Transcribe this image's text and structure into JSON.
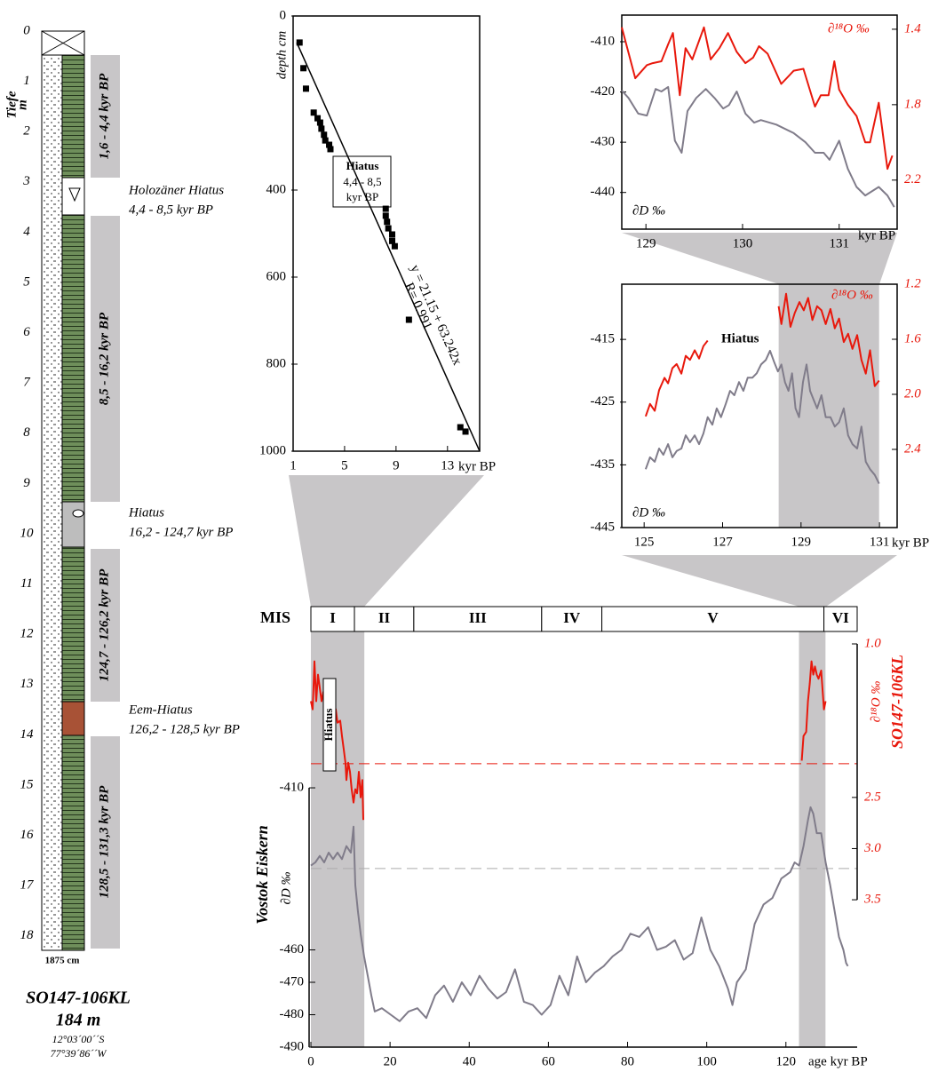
{
  "core_log": {
    "depth_title": "Tiefe",
    "depth_unit": "m",
    "depth_labels": [
      0,
      1,
      2,
      3,
      4,
      5,
      6,
      7,
      8,
      9,
      10,
      11,
      12,
      13,
      14,
      15,
      16,
      17,
      18
    ],
    "age_bars": [
      "1,6 - 4,4 kyr BP",
      "8,5 - 16,2 kyr BP",
      "124,7 - 126,2 kyr BP",
      "128,5 - 131,3 kyr BP"
    ],
    "hiatuses": [
      [
        "Holozäner Hiatus",
        "4,4 - 8,5 kyr BP"
      ],
      [
        "Hiatus",
        "16,2 - 124,7 kyr BP"
      ],
      [
        "Eem-Hiatus",
        "126,2 - 128,5 kyr BP"
      ]
    ],
    "bottom_label": "1875 cm",
    "core_name": "SO147-106KL",
    "water_depth": "184 m",
    "lat": "12°03´00´´S",
    "lon": "77°39´86´´W"
  },
  "chart_data": [
    {
      "type": "scatter",
      "ylabel": "depth cm",
      "xlabel": "kyr BP",
      "xlim": [
        1,
        15.5
      ],
      "ylim": [
        1000,
        0
      ],
      "xticks": [
        1,
        5,
        9,
        13
      ],
      "yticks": [
        0,
        400,
        600,
        800,
        1000
      ],
      "series": [
        {
          "color": "#000000",
          "x": [
            1.5,
            1.8,
            2.0,
            2.6,
            2.9,
            3.1,
            3.2,
            3.4,
            3.5,
            3.8,
            3.9,
            8.2,
            8.2,
            8.3,
            8.4,
            8.7,
            8.7,
            8.9,
            10.0,
            14.0,
            14.4
          ],
          "values": [
            61,
            120,
            167,
            222,
            235,
            245,
            259,
            273,
            286,
            296,
            306,
            443,
            459,
            473,
            488,
            502,
            517,
            529,
            698,
            945,
            955
          ]
        }
      ],
      "fit": {
        "color": "#000000",
        "x": [
          1.28,
          15.5
        ],
        "values": [
          61,
          1000
        ]
      },
      "annotations": {
        "equation": "y = 21.15 + 63.242x",
        "r": "R= 0.991",
        "hiatus_box": [
          "Hiatus",
          "4,4 - 8,5",
          "kyr BP"
        ]
      }
    },
    {
      "type": "line",
      "ylabel": "∂D ‰",
      "y2label": "∂¹⁸O ‰",
      "xlabel": "kyr BP",
      "xlim": [
        128.75,
        131.6
      ],
      "ylim": [
        -447.3,
        -404.7
      ],
      "y2lim": [
        2.46,
        1.325
      ],
      "xticks": [
        129,
        130,
        131
      ],
      "yticks": [
        -410,
        -420,
        -430,
        -440
      ],
      "y2ticks": [
        1.4,
        1.8,
        2.2
      ],
      "series": [
        {
          "color": "#807c8a",
          "x": [
            128.75,
            128.82,
            128.92,
            129.01,
            129.1,
            129.16,
            129.23,
            129.3,
            129.37,
            129.43,
            129.52,
            129.62,
            129.71,
            129.8,
            129.86,
            129.94,
            130.03,
            130.12,
            130.19,
            130.35,
            130.53,
            130.65,
            130.75,
            130.84,
            130.9,
            131.0,
            131.09,
            131.18,
            131.27,
            131.41,
            131.5,
            131.57
          ],
          "values": [
            -419.7,
            -421.2,
            -424.3,
            -424.7,
            -419.4,
            -419.9,
            -419.0,
            -429.7,
            -432.1,
            -423.8,
            -421.2,
            -419.4,
            -421.2,
            -423.3,
            -422.6,
            -419.9,
            -424.3,
            -426.1,
            -425.6,
            -426.5,
            -428.2,
            -430.0,
            -432.1,
            -432.1,
            -433.5,
            -429.7,
            -435.3,
            -438.9,
            -440.6,
            -438.9,
            -440.6,
            -442.9
          ]
        },
        {
          "color": "#e8180c",
          "axis": "y2",
          "x": [
            128.75,
            128.89,
            129.01,
            129.07,
            129.16,
            129.23,
            129.28,
            129.35,
            129.41,
            129.48,
            129.6,
            129.67,
            129.76,
            129.85,
            129.94,
            130.03,
            130.11,
            130.17,
            130.26,
            130.4,
            130.53,
            130.63,
            130.75,
            130.81,
            130.89,
            130.95,
            131.0,
            131.09,
            131.18,
            131.27,
            131.32,
            131.41,
            131.5,
            131.55
          ],
          "values": [
            1.39,
            1.66,
            1.59,
            1.58,
            1.57,
            1.48,
            1.42,
            1.75,
            1.5,
            1.56,
            1.39,
            1.56,
            1.5,
            1.42,
            1.52,
            1.58,
            1.55,
            1.49,
            1.53,
            1.69,
            1.62,
            1.61,
            1.81,
            1.75,
            1.75,
            1.57,
            1.72,
            1.8,
            1.86,
            2.0,
            2.0,
            1.79,
            2.14,
            2.07
          ]
        }
      ]
    },
    {
      "type": "line",
      "ylabel": "∂D ‰",
      "y2label": "∂¹⁸O ‰",
      "xlabel": "kyr BP",
      "annotation": "Hiatus",
      "xlim": [
        124.43,
        131.45
      ],
      "ylim": [
        -445,
        -406.2
      ],
      "y2lim": [
        2.968,
        1.2
      ],
      "xticks": [
        125,
        127,
        129,
        131
      ],
      "yticks": [
        -415,
        -425,
        -435,
        -445
      ],
      "y2ticks": [
        1.2,
        1.6,
        {
          "value": 2,
          "label": "2.0"
        },
        2.4
      ],
      "shaded": [
        [
          128.43,
          130.99
        ]
      ],
      "series": [
        {
          "color": "#807c8a",
          "x": [
            125.04,
            125.15,
            125.27,
            125.38,
            125.49,
            125.61,
            125.72,
            125.83,
            125.95,
            126.06,
            126.17,
            126.29,
            126.4,
            126.51,
            126.62,
            126.74,
            126.85,
            126.96,
            127.08,
            127.19,
            127.3,
            127.42,
            127.53,
            127.64,
            127.76,
            127.87,
            127.98,
            128.1,
            128.21,
            128.32,
            128.41,
            128.5,
            128.59,
            128.68,
            128.77,
            128.86,
            128.95,
            129.05,
            129.14,
            129.23,
            129.32,
            129.41,
            129.52,
            129.63,
            129.75,
            129.86,
            129.97,
            130.09,
            130.2,
            130.31,
            130.43,
            130.54,
            130.65,
            130.76,
            130.88,
            130.99
          ],
          "values": [
            -435.7,
            -433.8,
            -434.5,
            -432.4,
            -433.4,
            -431.7,
            -433.8,
            -432.8,
            -432.4,
            -430.3,
            -431.4,
            -430.3,
            -431.7,
            -430.0,
            -427.4,
            -428.6,
            -426.0,
            -427.4,
            -425.3,
            -423.2,
            -423.9,
            -421.8,
            -423.2,
            -421.1,
            -421.1,
            -420.4,
            -419.0,
            -418.3,
            -416.8,
            -418.7,
            -420.1,
            -419.0,
            -421.8,
            -423.2,
            -420.4,
            -426.0,
            -427.4,
            -421.8,
            -419.0,
            -423.2,
            -424.6,
            -426.0,
            -423.9,
            -427.4,
            -427.4,
            -428.9,
            -428.2,
            -426.0,
            -430.3,
            -431.7,
            -432.4,
            -428.9,
            -434.5,
            -435.7,
            -436.6,
            -438.0
          ]
        },
        {
          "color": "#e8180c",
          "axis": "y2",
          "x": [
            125.04,
            125.15,
            125.27,
            125.38,
            125.52,
            125.61,
            125.72,
            125.83,
            125.95,
            126.06,
            126.17,
            126.29,
            126.4,
            126.51,
            126.62,
            127.5,
            128.43,
            128.5,
            128.62,
            128.73,
            128.84,
            128.96,
            129.07,
            129.18,
            129.29,
            129.41,
            129.52,
            129.63,
            129.75,
            129.86,
            129.97,
            130.09,
            130.2,
            130.31,
            130.43,
            130.54,
            130.65,
            130.76,
            130.88,
            130.99
          ],
          "values": [
            2.16,
            2.07,
            2.12,
            1.97,
            1.88,
            1.92,
            1.81,
            1.78,
            1.85,
            1.72,
            1.75,
            1.68,
            1.74,
            1.65,
            1.61,
            null,
            1.36,
            1.49,
            1.27,
            1.51,
            1.41,
            1.33,
            1.39,
            1.3,
            1.46,
            1.36,
            1.39,
            1.49,
            1.38,
            1.52,
            1.45,
            1.62,
            1.56,
            1.67,
            1.57,
            1.75,
            1.85,
            1.68,
            1.94,
            1.9
          ]
        }
      ]
    },
    {
      "type": "line",
      "ylabel": "∂D ‰",
      "ylabel2": "Vostok Eiskern",
      "y2label": "∂¹⁸O ‰",
      "y2label2": "SO147-106KL",
      "xlabel": "age kyr BP",
      "annotation": "Hiatus",
      "xlim": [
        0,
        138
      ],
      "ylim": [
        -490,
        -365.6
      ],
      "y2lim": [
        4.94,
        1.0
      ],
      "xticks": [
        0,
        20,
        40,
        60,
        80,
        100,
        120
      ],
      "yticks": [
        -410,
        -460,
        -470,
        -480,
        -490
      ],
      "y2ticks": [
        {
          "value": 1,
          "label": "1.0"
        },
        2.5,
        {
          "value": 3,
          "label": "3.0"
        },
        3.5
      ],
      "shaded": [
        [
          0,
          13.5
        ],
        [
          123.3,
          130.0
        ]
      ],
      "reference_lines": [
        {
          "axis": "y2",
          "value": 2.17,
          "color": "#e8180c"
        },
        {
          "axis": "y",
          "value": -434.9,
          "color": "#aaaaaa"
        }
      ],
      "mis": {
        "label": "MIS",
        "stages": [
          {
            "name": "I",
            "start": 0,
            "end": 11
          },
          {
            "name": "II",
            "start": 11,
            "end": 26
          },
          {
            "name": "III",
            "start": 26,
            "end": 58.3
          },
          {
            "name": "IV",
            "start": 58.3,
            "end": 73.5
          },
          {
            "name": "V",
            "start": 73.5,
            "end": 129.6
          },
          {
            "name": "VI",
            "start": 129.6,
            "end": 138
          }
        ]
      },
      "series": [
        {
          "color": "#807c8a",
          "x": [
            0,
            1.12,
            2.24,
            3.36,
            4.48,
            5.61,
            6.73,
            7.85,
            8.97,
            10.09,
            10.76,
            11.21,
            11.88,
            12.56,
            13.45,
            14.35,
            15.25,
            16.14,
            17.94,
            20.18,
            22.42,
            24.66,
            26.91,
            29.15,
            31.39,
            33.63,
            35.87,
            38.12,
            40.36,
            42.6,
            44.84,
            47.09,
            49.33,
            51.57,
            53.81,
            56.05,
            58.3,
            60.54,
            62.78,
            65.02,
            67.26,
            69.51,
            71.75,
            73.99,
            76.23,
            78.48,
            80.72,
            82.96,
            85.2,
            87.44,
            89.69,
            91.93,
            94.17,
            96.41,
            98.65,
            100.9,
            103.14,
            105.38,
            106.5,
            107.62,
            109.87,
            112.11,
            114.35,
            116.59,
            118.83,
            121.08,
            122.2,
            123.32,
            124.44,
            125.56,
            126.23,
            126.91,
            127.8,
            128.92,
            130.04,
            131.17,
            132.29,
            133.41,
            134.53,
            135.2,
            135.65
          ],
          "values": [
            -434,
            -433,
            -431,
            -433,
            -430,
            -432,
            -430,
            -432,
            -428,
            -430,
            -422,
            -440,
            -448,
            -455,
            -462,
            -468,
            -474,
            -479,
            -478,
            -480,
            -482,
            -479,
            -478,
            -481,
            -474,
            -471,
            -476,
            -470,
            -474,
            -468,
            -472,
            -475,
            -473,
            -466,
            -476,
            -477,
            -480,
            -477,
            -468,
            -474,
            -462,
            -470,
            -467,
            -465,
            -462,
            -460,
            -455,
            -456,
            -453,
            -460,
            -459,
            -457,
            -463,
            -461,
            -450,
            -460,
            -465,
            -472,
            -477,
            -470,
            -466,
            -452,
            -446,
            -444,
            -438,
            -436,
            -433,
            -434,
            -428,
            -420,
            -416,
            -418,
            -424,
            -424,
            -433,
            -440,
            -448,
            -456,
            -460,
            -464,
            -465
          ]
        },
        {
          "color": "#e8180c",
          "axis": "y2",
          "x": [
            0,
            0.45,
            0.9,
            1.35,
            1.79,
            2.24,
            2.69,
            3.14,
            3.59,
            4.48,
            5.38,
            6.28,
            6.73,
            7.4,
            7.85,
            8.3,
            8.74,
            8.97,
            9.42,
            9.87,
            10.31,
            10.76,
            11.21,
            11.66,
            12.11,
            12.56,
            13.0,
            13.23,
            60,
            123.99,
            124.44,
            125.11,
            125.56,
            126.01,
            126.46,
            126.91,
            127.35,
            127.8,
            128.25,
            128.92,
            129.6,
            130.04
          ],
          "values": [
            1.56,
            1.64,
            1.17,
            1.56,
            1.3,
            1.43,
            1.56,
            1.47,
            1.64,
            1.64,
            1.56,
            1.64,
            1.77,
            1.75,
            1.9,
            2.03,
            2.16,
            2.33,
            2.16,
            2.25,
            2.42,
            2.55,
            2.42,
            2.46,
            2.25,
            2.5,
            2.33,
            2.72,
            null,
            2.14,
            1.9,
            1.86,
            1.56,
            1.39,
            1.17,
            1.3,
            1.22,
            1.3,
            1.34,
            1.26,
            1.64,
            1.56
          ]
        }
      ]
    }
  ]
}
